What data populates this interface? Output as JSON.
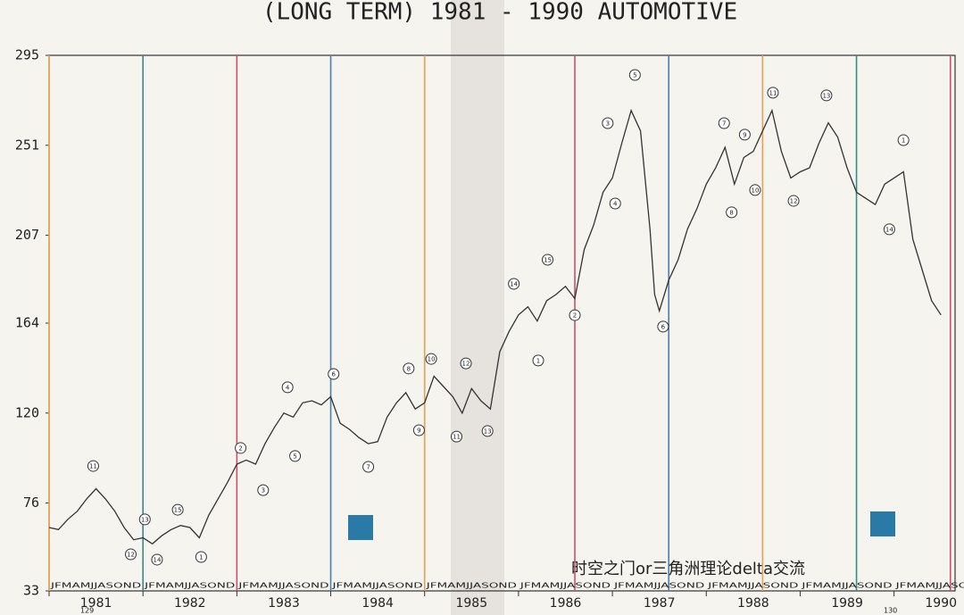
{
  "chart_data": {
    "type": "line",
    "title": "(LONG TERM)  1981 - 1990  AUTOMOTIVE",
    "ylim": [
      33,
      295
    ],
    "yticks": [
      33,
      76,
      120,
      164,
      207,
      251,
      295
    ],
    "xlim": [
      1981,
      1990.65
    ],
    "xticks": [
      1981,
      1982,
      1983,
      1984,
      1985,
      1986,
      1987,
      1988,
      1989,
      1990
    ],
    "months": "JFMAMJJASOND",
    "series": [
      {
        "color": "#333333",
        "x": [
          1981.0,
          1981.1,
          1981.2,
          1981.3,
          1981.4,
          1981.5,
          1981.6,
          1981.7,
          1981.8,
          1981.9,
          1982.0,
          1982.1,
          1982.2,
          1982.3,
          1982.4,
          1982.5,
          1982.6,
          1982.7,
          1982.8,
          1982.9,
          1983.0,
          1983.1,
          1983.2,
          1983.3,
          1983.4,
          1983.5,
          1983.6,
          1983.7,
          1983.8,
          1983.9,
          1984.0,
          1984.1,
          1984.2,
          1984.3,
          1984.4,
          1984.5,
          1984.6,
          1984.7,
          1984.8,
          1984.9,
          1985.0,
          1985.1,
          1985.2,
          1985.3,
          1985.4,
          1985.5,
          1985.6,
          1985.7,
          1985.8,
          1985.9,
          1986.0,
          1986.1,
          1986.2,
          1986.3,
          1986.4,
          1986.5,
          1986.6,
          1986.7,
          1986.8,
          1986.9,
          1987.0,
          1987.1,
          1987.2,
          1987.3,
          1987.4,
          1987.45,
          1987.5,
          1987.6,
          1987.7,
          1987.8,
          1987.9,
          1988.0,
          1988.1,
          1988.2,
          1988.3,
          1988.4,
          1988.5,
          1988.6,
          1988.7,
          1988.8,
          1988.9,
          1989.0,
          1989.1,
          1989.2,
          1989.3,
          1989.4,
          1989.5,
          1989.6,
          1989.7,
          1989.8,
          1989.9,
          1990.0,
          1990.1,
          1990.2,
          1990.3,
          1990.4,
          1990.5
        ],
        "values": [
          64,
          63,
          68,
          72,
          78,
          83,
          78,
          72,
          64,
          58,
          59,
          56,
          60,
          63,
          65,
          64,
          59,
          70,
          78,
          86,
          95,
          97,
          95,
          105,
          113,
          120,
          118,
          125,
          126,
          124,
          128,
          115,
          112,
          108,
          105,
          106,
          118,
          125,
          130,
          122,
          125,
          138,
          133,
          128,
          120,
          132,
          126,
          122,
          150,
          160,
          168,
          172,
          165,
          175,
          178,
          182,
          176,
          200,
          212,
          228,
          235,
          252,
          268,
          258,
          210,
          178,
          170,
          185,
          195,
          210,
          220,
          232,
          240,
          250,
          232,
          245,
          248,
          258,
          268,
          248,
          235,
          238,
          240,
          252,
          262,
          255,
          240,
          228,
          225,
          222,
          232,
          235,
          238,
          205,
          190,
          175,
          168
        ]
      }
    ],
    "vlines": [
      {
        "x": 1981.0,
        "color": "#e8a050"
      },
      {
        "x": 1982.0,
        "color": "#3a8a8a"
      },
      {
        "x": 1983.0,
        "color": "#c8506a"
      },
      {
        "x": 1984.0,
        "color": "#4a80b0"
      },
      {
        "x": 1985.0,
        "color": "#e8a050"
      },
      {
        "x": 1986.6,
        "color": "#c8506a"
      },
      {
        "x": 1987.6,
        "color": "#4a80b0"
      },
      {
        "x": 1988.6,
        "color": "#e8a050"
      },
      {
        "x": 1989.6,
        "color": "#3a8a8a"
      },
      {
        "x": 1990.6,
        "color": "#c8506a"
      }
    ],
    "annotations": [
      {
        "x": 1981.47,
        "y": 94.1,
        "label": "11"
      },
      {
        "x": 1981.87,
        "y": 50.9,
        "label": "12"
      },
      {
        "x": 1982.02,
        "y": 68,
        "label": "13"
      },
      {
        "x": 1982.15,
        "y": 48.3,
        "label": "14"
      },
      {
        "x": 1982.37,
        "y": 72.7,
        "label": "15"
      },
      {
        "x": 1982.62,
        "y": 49.6,
        "label": "1"
      },
      {
        "x": 1983.04,
        "y": 102.9,
        "label": "2"
      },
      {
        "x": 1983.28,
        "y": 82.3,
        "label": "3"
      },
      {
        "x": 1983.54,
        "y": 132.6,
        "label": "4"
      },
      {
        "x": 1983.62,
        "y": 99,
        "label": "5"
      },
      {
        "x": 1984.03,
        "y": 139.1,
        "label": "6"
      },
      {
        "x": 1984.4,
        "y": 93.7,
        "label": "7"
      },
      {
        "x": 1984.83,
        "y": 141.8,
        "label": "8"
      },
      {
        "x": 1984.94,
        "y": 111.6,
        "label": "9"
      },
      {
        "x": 1985.07,
        "y": 146.5,
        "label": "10"
      },
      {
        "x": 1985.34,
        "y": 108.5,
        "label": "11"
      },
      {
        "x": 1985.44,
        "y": 144.3,
        "label": "12"
      },
      {
        "x": 1985.67,
        "y": 111.2,
        "label": "13"
      },
      {
        "x": 1985.95,
        "y": 183.2,
        "label": "14"
      },
      {
        "x": 1986.31,
        "y": 195,
        "label": "15"
      },
      {
        "x": 1986.21,
        "y": 145.7,
        "label": "1"
      },
      {
        "x": 1986.6,
        "y": 167.9,
        "label": "2"
      },
      {
        "x": 1986.95,
        "y": 261.8,
        "label": "3"
      },
      {
        "x": 1987.03,
        "y": 222.5,
        "label": "4"
      },
      {
        "x": 1987.24,
        "y": 285.4,
        "label": "5"
      },
      {
        "x": 1987.54,
        "y": 162.3,
        "label": "6"
      },
      {
        "x": 1988.19,
        "y": 261.8,
        "label": "7"
      },
      {
        "x": 1988.27,
        "y": 218.2,
        "label": "8"
      },
      {
        "x": 1988.41,
        "y": 256.2,
        "label": "9"
      },
      {
        "x": 1988.52,
        "y": 229.1,
        "label": "10"
      },
      {
        "x": 1988.71,
        "y": 276.7,
        "label": "11"
      },
      {
        "x": 1988.93,
        "y": 223.8,
        "label": "12"
      },
      {
        "x": 1989.28,
        "y": 275.4,
        "label": "13"
      },
      {
        "x": 1989.95,
        "y": 209.9,
        "label": "14"
      },
      {
        "x": 1990.1,
        "y": 253.5,
        "label": "1"
      }
    ],
    "page_numbers": [
      "129",
      "130"
    ],
    "watermark": "时空之门or三角洲理论delta交流"
  }
}
